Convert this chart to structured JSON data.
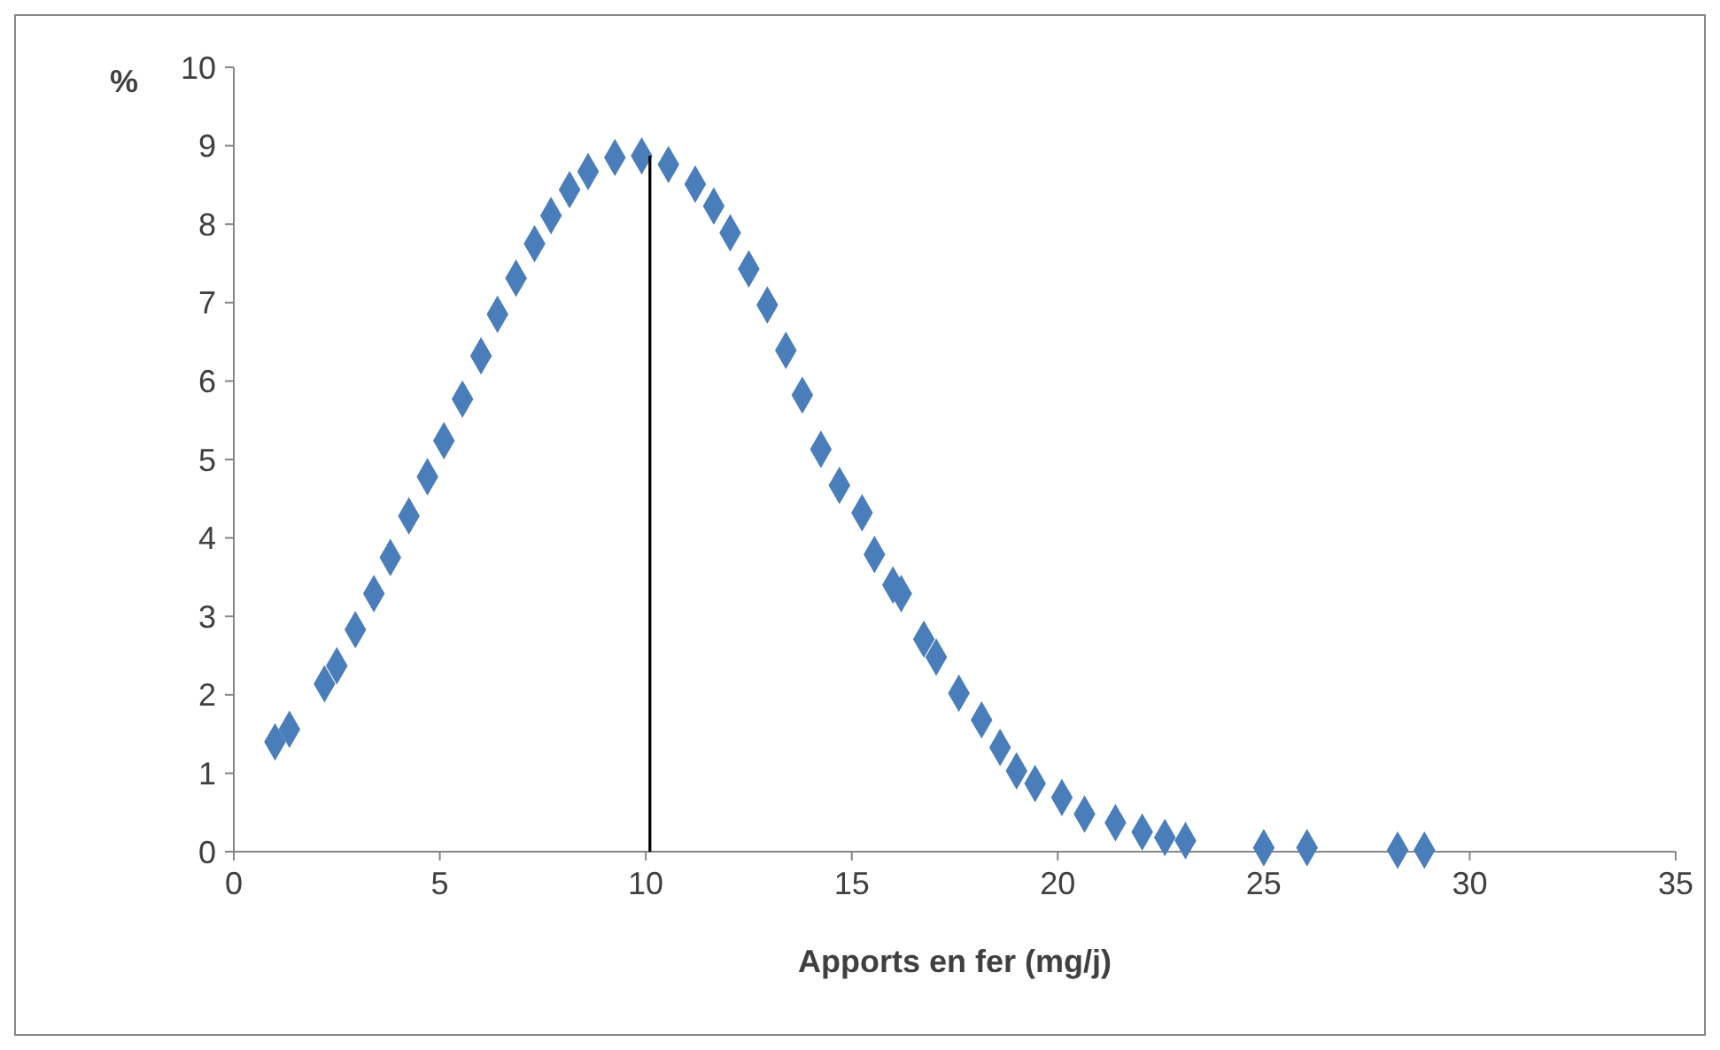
{
  "chart_data": {
    "type": "scatter",
    "xlabel": "Apports en fer (mg/j)",
    "ylabel": "%",
    "marker": "diamond",
    "xlim": [
      0,
      35
    ],
    "xticks": [
      0,
      5,
      10,
      15,
      20,
      25,
      30,
      35
    ],
    "ylim": [
      0,
      10
    ],
    "yticks": [
      0,
      1,
      2,
      3,
      4,
      5,
      6,
      7,
      8,
      9,
      10
    ],
    "ref_lines": [
      {
        "axis": "x",
        "value": 10.1,
        "color": "#000000"
      }
    ],
    "series": [
      {
        "color": "#4a7ebb",
        "x": [
          1.0,
          1.35,
          2.2,
          2.5,
          2.95,
          3.4,
          3.8,
          4.25,
          4.7,
          5.1,
          5.55,
          6.0,
          6.4,
          6.85,
          7.3,
          7.7,
          8.15,
          8.6,
          9.25,
          9.9,
          10.55,
          11.2,
          11.65,
          12.05,
          12.5,
          12.95,
          13.4,
          13.8,
          14.25,
          14.7,
          15.25,
          15.55,
          16.0,
          16.2,
          16.75,
          17.05,
          17.6,
          18.15,
          18.6,
          19.0,
          19.45,
          20.1,
          20.65,
          21.4,
          22.05,
          22.6,
          23.1,
          25.0,
          26.05,
          28.25,
          28.9
        ],
        "values": [
          1.4,
          1.56,
          2.14,
          2.37,
          2.83,
          3.29,
          3.75,
          4.28,
          4.78,
          5.24,
          5.77,
          6.32,
          6.85,
          7.31,
          7.75,
          8.11,
          8.44,
          8.67,
          8.85,
          8.87,
          8.76,
          8.51,
          8.23,
          7.89,
          7.43,
          6.97,
          6.39,
          5.82,
          5.13,
          4.67,
          4.32,
          3.79,
          3.4,
          3.29,
          2.71,
          2.48,
          2.02,
          1.68,
          1.33,
          1.03,
          0.87,
          0.69,
          0.48,
          0.37,
          0.25,
          0.18,
          0.14,
          0.05,
          0.05,
          0.02,
          0.02
        ]
      }
    ]
  }
}
